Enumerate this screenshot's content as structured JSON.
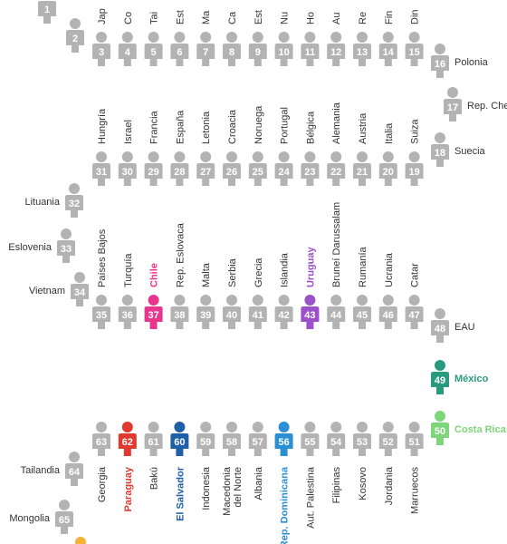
{
  "chart_data": {
    "type": "pictogram-ranking",
    "colors": {
      "default": "#b3b3b3",
      "default_text": "#333333",
      "Chile": "#e8368f",
      "Uruguay": "#9b51c9",
      "Paraguay": "#e0392f",
      "El Salvador": "#1f5fa8",
      "Rep. Dominicana": "#2b8fd6",
      "Panamá": "#8e3fd4",
      "Argentina": "#2eaee0",
      "Perú": "#6a1b7a",
      "Colombia": "#d6246e",
      "Jamaica": "#3b6fd6",
      "Brasil": "#2e9e3a",
      "México": "#2a9a7f",
      "Costa Rica": "#7dd67a",
      "orange": "#f5b335"
    },
    "ranking": [
      {
        "rank": 1,
        "country": ""
      },
      {
        "rank": 2,
        "country": ""
      },
      {
        "rank": 3,
        "country": "Jap"
      },
      {
        "rank": 4,
        "country": "Co"
      },
      {
        "rank": 5,
        "country": "Tai"
      },
      {
        "rank": 6,
        "country": "Est"
      },
      {
        "rank": 7,
        "country": "Ma"
      },
      {
        "rank": 8,
        "country": "Ca"
      },
      {
        "rank": 9,
        "country": "Est"
      },
      {
        "rank": 10,
        "country": "Nu"
      },
      {
        "rank": 11,
        "country": "Ho"
      },
      {
        "rank": 12,
        "country": "Au"
      },
      {
        "rank": 13,
        "country": "Re"
      },
      {
        "rank": 14,
        "country": "Fin"
      },
      {
        "rank": 15,
        "country": "Din"
      },
      {
        "rank": 16,
        "country": "Polonia"
      },
      {
        "rank": 17,
        "country": "Rep. Che"
      },
      {
        "rank": 18,
        "country": "Suecia"
      },
      {
        "rank": 19,
        "country": "Suiza"
      },
      {
        "rank": 20,
        "country": "Italia"
      },
      {
        "rank": 21,
        "country": "Austria"
      },
      {
        "rank": 22,
        "country": "Alemania"
      },
      {
        "rank": 23,
        "country": "Bélgica"
      },
      {
        "rank": 24,
        "country": "Portugal"
      },
      {
        "rank": 25,
        "country": "Noruega"
      },
      {
        "rank": 26,
        "country": "Croacia"
      },
      {
        "rank": 27,
        "country": "Letonia"
      },
      {
        "rank": 28,
        "country": "España"
      },
      {
        "rank": 29,
        "country": "Francia"
      },
      {
        "rank": 30,
        "country": "Israel"
      },
      {
        "rank": 31,
        "country": "Hungría"
      },
      {
        "rank": 32,
        "country": "Lituania"
      },
      {
        "rank": 33,
        "country": "Eslovenia"
      },
      {
        "rank": 34,
        "country": "Vietnam"
      },
      {
        "rank": 35,
        "country": "Países Bajos"
      },
      {
        "rank": 36,
        "country": "Turquía"
      },
      {
        "rank": 37,
        "country": "Chile"
      },
      {
        "rank": 38,
        "country": "Rep. Eslovaca"
      },
      {
        "rank": 39,
        "country": "Malta"
      },
      {
        "rank": 40,
        "country": "Serbia"
      },
      {
        "rank": 41,
        "country": "Grecia"
      },
      {
        "rank": 42,
        "country": "Islandia"
      },
      {
        "rank": 43,
        "country": "Uruguay"
      },
      {
        "rank": 44,
        "country": "Bruneí Darussalam"
      },
      {
        "rank": 45,
        "country": "Rumanía"
      },
      {
        "rank": 46,
        "country": "Ucrania"
      },
      {
        "rank": 47,
        "country": "Catar"
      },
      {
        "rank": 48,
        "country": "EAU"
      },
      {
        "rank": 49,
        "country": "México"
      },
      {
        "rank": 50,
        "country": "Costa Rica"
      },
      {
        "rank": 51,
        "country": "Marruecos"
      },
      {
        "rank": 52,
        "country": "Jordania"
      },
      {
        "rank": 53,
        "country": "Kosovo"
      },
      {
        "rank": 54,
        "country": "Filipinas"
      },
      {
        "rank": 55,
        "country": "Aut. Palestina"
      },
      {
        "rank": 56,
        "country": "Rep. Dominicana"
      },
      {
        "rank": 57,
        "country": "Albania"
      },
      {
        "rank": 58,
        "country": "Macedonia del Norte"
      },
      {
        "rank": 59,
        "country": "Indonesia"
      },
      {
        "rank": 60,
        "country": "El Salvador"
      },
      {
        "rank": 61,
        "country": "Bakú"
      },
      {
        "rank": 62,
        "country": "Paraguay"
      },
      {
        "rank": 63,
        "country": "Georgia"
      },
      {
        "rank": 64,
        "country": "Tailandia"
      },
      {
        "rank": 65,
        "country": "Mongolia"
      }
    ]
  }
}
